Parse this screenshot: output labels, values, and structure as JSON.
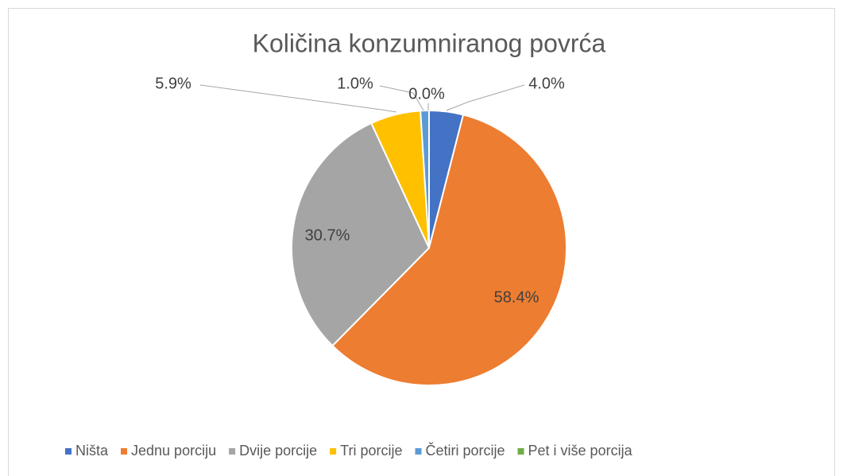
{
  "chart_data": {
    "type": "pie",
    "title": "Količina konzumniranog povrća",
    "categories": [
      "Ništa",
      "Jednu porciju",
      "Dvije porcije",
      "Tri porcije",
      "Četiri porcije",
      "Pet i više porcija"
    ],
    "values": [
      4.0,
      58.4,
      30.7,
      5.9,
      1.0,
      0.0
    ],
    "value_labels": [
      "4.0%",
      "58.4%",
      "30.7%",
      "5.9%",
      "1.0%",
      "0.0%"
    ],
    "colors": [
      "#4472c4",
      "#ed7d31",
      "#a5a5a5",
      "#ffc000",
      "#5b9bd5",
      "#70ad47"
    ],
    "legend": "bottom"
  }
}
